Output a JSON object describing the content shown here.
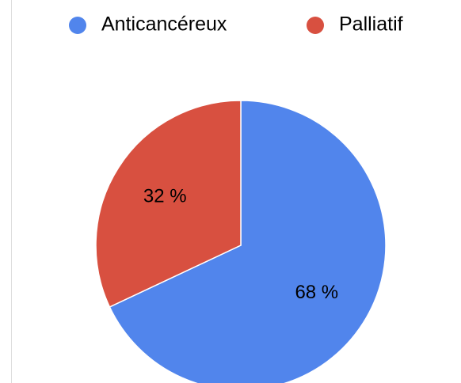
{
  "chart_data": {
    "type": "pie",
    "categories": [
      "Anticancéreux",
      "Palliatif"
    ],
    "values": [
      68,
      32
    ],
    "value_labels": [
      "68 %",
      "32 %"
    ],
    "colors": [
      "#5185ec",
      "#d85040"
    ],
    "legend": "top"
  }
}
